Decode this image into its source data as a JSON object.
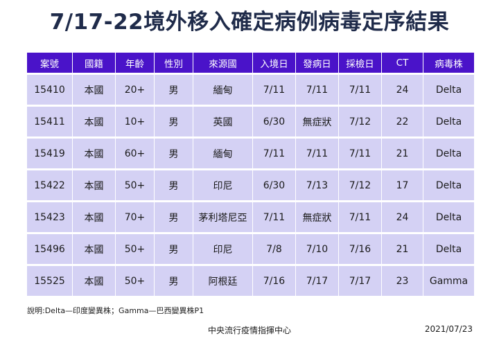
{
  "title": "7/17-22境外移入確定病例病毒定序結果",
  "table": {
    "headers": [
      "案號",
      "國籍",
      "年齡",
      "性別",
      "來源國",
      "入境日",
      "發病日",
      "採檢日",
      "CT",
      "病毒株"
    ],
    "rows": [
      [
        "15410",
        "本國",
        "20+",
        "男",
        "緬甸",
        "7/11",
        "7/11",
        "7/11",
        "24",
        "Delta"
      ],
      [
        "15411",
        "本國",
        "10+",
        "男",
        "英國",
        "6/30",
        "無症狀",
        "7/12",
        "22",
        "Delta"
      ],
      [
        "15419",
        "本國",
        "60+",
        "男",
        "緬甸",
        "7/11",
        "7/11",
        "7/11",
        "21",
        "Delta"
      ],
      [
        "15422",
        "本國",
        "50+",
        "男",
        "印尼",
        "6/30",
        "7/13",
        "7/12",
        "17",
        "Delta"
      ],
      [
        "15423",
        "本國",
        "70+",
        "男",
        "茅利塔尼亞",
        "7/11",
        "無症狀",
        "7/11",
        "24",
        "Delta"
      ],
      [
        "15496",
        "本國",
        "50+",
        "男",
        "印尼",
        "7/8",
        "7/10",
        "7/16",
        "21",
        "Delta"
      ],
      [
        "15525",
        "本國",
        "50+",
        "男",
        "阿根廷",
        "7/16",
        "7/17",
        "7/17",
        "23",
        "Gamma"
      ]
    ]
  },
  "note": "說明:Delta—印度變異株；Gamma—巴西變異株P1",
  "footer": {
    "source": "中央流行疫情指揮中心",
    "date": "2021/07/23"
  },
  "colors": {
    "header_bg": "#4a13c9",
    "cell_bg": "#d4d1f4",
    "title": "#1f2b4a"
  }
}
